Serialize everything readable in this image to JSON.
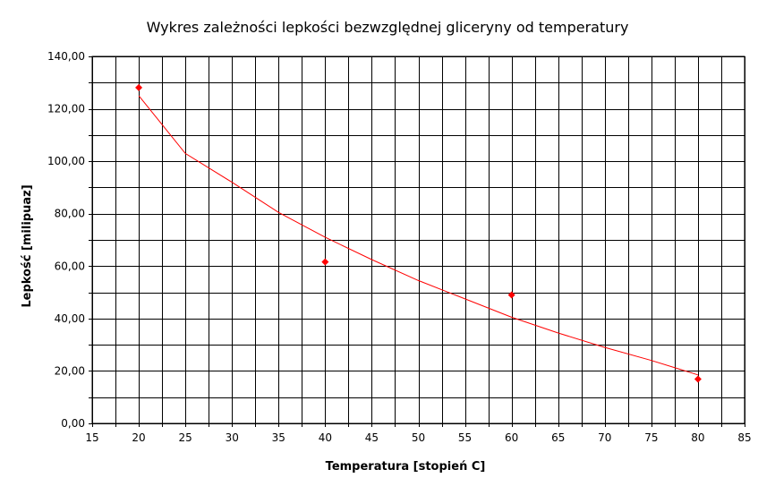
{
  "chart_data": {
    "type": "scatter",
    "title": "Wykres zależności lepkości bezwzględnej gliceryny od temperatury",
    "xlabel": "Temperatura [stopień C]",
    "ylabel": "Lepkość [milipuaz]",
    "xlim": [
      15,
      85
    ],
    "ylim": [
      0,
      140
    ],
    "x_ticks": [
      "15",
      "20",
      "25",
      "30",
      "35",
      "40",
      "45",
      "50",
      "55",
      "60",
      "65",
      "70",
      "75",
      "80",
      "85"
    ],
    "y_ticks": [
      "0,00",
      "20,00",
      "40,00",
      "60,00",
      "80,00",
      "100,00",
      "120,00",
      "140,00"
    ],
    "x_grid_step": 2.5,
    "y_grid_step": 10,
    "grid": true,
    "legend": "none",
    "colors": {
      "marker": "#ff0000",
      "trendline": "#ff0000",
      "grid": "#000000"
    },
    "series": [
      {
        "marker": "diamond",
        "x": [
          20,
          40,
          60,
          80
        ],
        "y": [
          128.1,
          61.6,
          49.0,
          16.9
        ]
      }
    ],
    "trendline": {
      "type": "power",
      "x": [
        20,
        25,
        30,
        35,
        40,
        45,
        50,
        55,
        60,
        65,
        70,
        75,
        80
      ],
      "y": [
        125.0,
        103.0,
        92.0,
        80.5,
        71.0,
        62.5,
        54.5,
        47.5,
        40.5,
        34.5,
        29.0,
        24.0,
        18.5
      ]
    }
  }
}
